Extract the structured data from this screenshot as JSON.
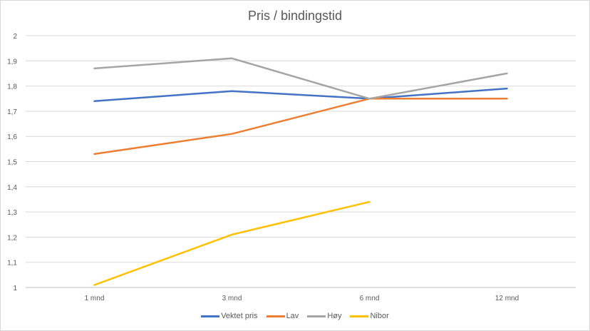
{
  "chart_data": {
    "type": "line",
    "title": "Pris / bindingstid",
    "xlabel": "",
    "ylabel": "",
    "categories": [
      "1 mnd",
      "3 mnd",
      "6 mnd",
      "12 mnd"
    ],
    "ylim": [
      1,
      2
    ],
    "yticks": [
      "1",
      "1,1",
      "1,2",
      "1,3",
      "1,4",
      "1,5",
      "1,6",
      "1,7",
      "1,8",
      "1,9",
      "2"
    ],
    "grid": true,
    "legend_position": "bottom",
    "series": [
      {
        "name": "Vektet pris",
        "color": "#4472C4",
        "values": [
          1.74,
          1.78,
          1.75,
          1.79
        ]
      },
      {
        "name": "Lav",
        "color": "#ED7D31",
        "values": [
          1.53,
          1.61,
          1.75,
          1.75
        ]
      },
      {
        "name": "Høy",
        "color": "#A5A5A5",
        "values": [
          1.87,
          1.91,
          1.75,
          1.85
        ]
      },
      {
        "name": "Nibor",
        "color": "#FFC000",
        "values": [
          1.01,
          1.21,
          1.34,
          null
        ]
      }
    ]
  }
}
